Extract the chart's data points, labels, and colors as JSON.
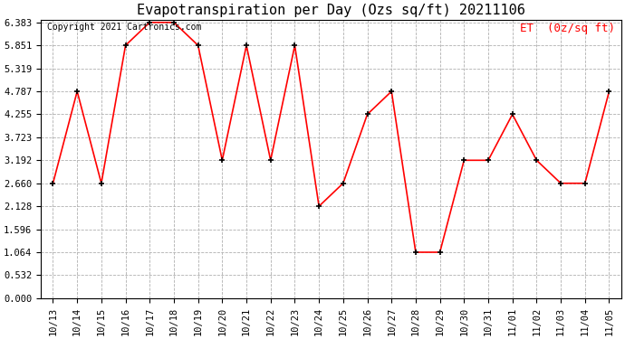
{
  "title": "Evapotranspiration per Day (Ozs sq/ft) 20211106",
  "copyright_text": "Copyright 2021 Cartronics.com",
  "legend_label": "ET  (0z/sq ft)",
  "dates": [
    "10/13",
    "10/14",
    "10/15",
    "10/16",
    "10/17",
    "10/18",
    "10/19",
    "10/20",
    "10/21",
    "10/22",
    "10/23",
    "10/24",
    "10/25",
    "10/26",
    "10/27",
    "10/28",
    "10/29",
    "10/30",
    "10/31",
    "11/01",
    "11/02",
    "11/03",
    "11/04",
    "11/05"
  ],
  "values": [
    2.66,
    4.787,
    2.66,
    5.851,
    6.383,
    6.383,
    5.851,
    3.192,
    5.851,
    3.192,
    5.851,
    2.128,
    2.66,
    4.255,
    4.787,
    1.064,
    1.064,
    3.192,
    3.192,
    4.255,
    3.192,
    2.66,
    2.66,
    4.787
  ],
  "line_color": "red",
  "marker_color": "black",
  "background_color": "#ffffff",
  "grid_color": "#b0b0b0",
  "yticks": [
    0.0,
    0.532,
    1.064,
    1.596,
    2.128,
    2.66,
    3.192,
    3.723,
    4.255,
    4.787,
    5.319,
    5.851,
    6.383
  ],
  "ylim_min": 0.0,
  "ylim_max": 6.383,
  "title_fontsize": 11,
  "legend_fontsize": 9,
  "tick_fontsize": 7.5,
  "copyright_fontsize": 7
}
